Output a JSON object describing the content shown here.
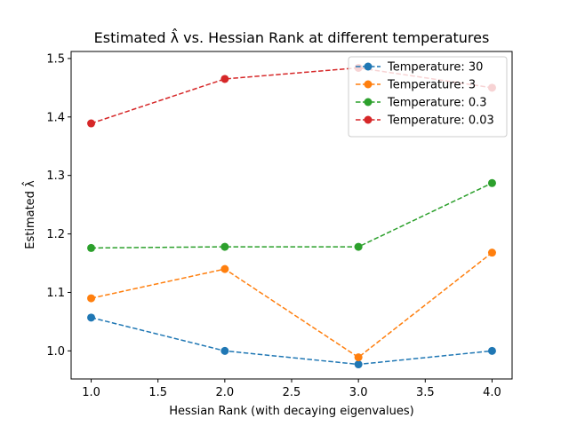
{
  "chart_data": {
    "type": "line",
    "title": "Estimated λ̂ vs. Hessian Rank at different temperatures",
    "xlabel": "Hessian Rank (with decaying eigenvalues)",
    "ylabel": "Estimated λ̂",
    "x": [
      1.0,
      2.0,
      3.0,
      4.0
    ],
    "xlim": [
      0.85,
      4.15
    ],
    "ylim": [
      0.952,
      1.512
    ],
    "xticks": [
      "1.0",
      "1.5",
      "2.0",
      "2.5",
      "3.0",
      "3.5",
      "4.0"
    ],
    "yticks": [
      "1.0",
      "1.1",
      "1.2",
      "1.3",
      "1.4",
      "1.5"
    ],
    "grid": false,
    "legend_position": "upper right",
    "series": [
      {
        "name": "Temperature: 30",
        "color": "#1f77b4",
        "values": [
          1.057,
          1.0,
          0.977,
          1.0
        ]
      },
      {
        "name": "Temperature: 3",
        "color": "#ff7f0e",
        "values": [
          1.09,
          1.14,
          0.989,
          1.168
        ]
      },
      {
        "name": "Temperature: 0.3",
        "color": "#2ca02c",
        "values": [
          1.176,
          1.178,
          1.178,
          1.287
        ]
      },
      {
        "name": "Temperature: 0.03",
        "color": "#d62728",
        "values": [
          1.389,
          1.465,
          1.484,
          1.45
        ]
      }
    ]
  }
}
